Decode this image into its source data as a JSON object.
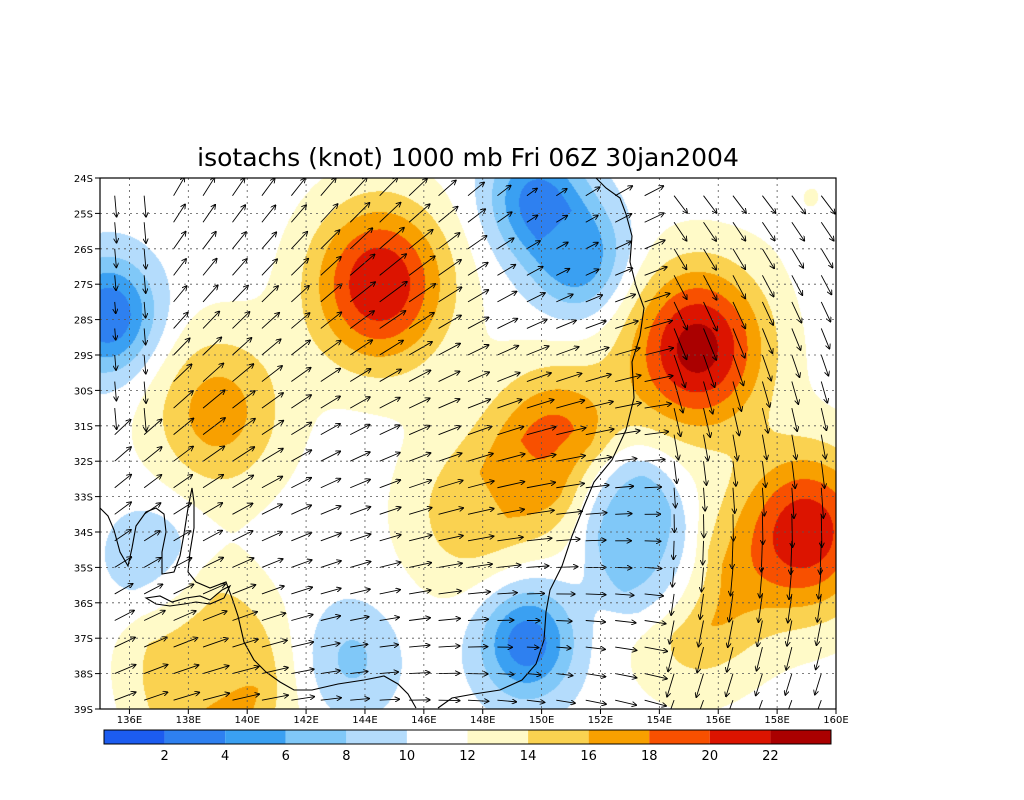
{
  "chart_data": {
    "type": "heatmap",
    "title": "isotachs (knot) 1000 mb Fri 06Z 30jan2004",
    "variable": "isotachs",
    "units": "knot",
    "level": "1000 mb",
    "valid_time": "Fri 06Z 30jan2004",
    "x_axis": {
      "range": [
        135,
        160
      ],
      "ticks": [
        136,
        138,
        140,
        142,
        144,
        146,
        148,
        150,
        152,
        154,
        156,
        158,
        160
      ],
      "tick_labels": [
        "136E",
        "138E",
        "140E",
        "142E",
        "144E",
        "146E",
        "148E",
        "150E",
        "152E",
        "154E",
        "156E",
        "158E",
        "160E"
      ]
    },
    "y_axis": {
      "range": [
        -39,
        -24
      ],
      "ticks": [
        -24,
        -25,
        -26,
        -27,
        -28,
        -29,
        -30,
        -31,
        -32,
        -33,
        -34,
        -35,
        -36,
        -37,
        -38,
        -39
      ],
      "tick_labels": [
        "24S",
        "25S",
        "26S",
        "27S",
        "28S",
        "29S",
        "30S",
        "31S",
        "32S",
        "33S",
        "34S",
        "35S",
        "36S",
        "37S",
        "38S",
        "39S"
      ]
    },
    "grid": true,
    "colorbar": {
      "labels": [
        "2",
        "4",
        "6",
        "8",
        "10",
        "12",
        "14",
        "16",
        "18",
        "20",
        "22"
      ],
      "levels": [
        2,
        4,
        6,
        8,
        10,
        12,
        14,
        16,
        18,
        20,
        22
      ],
      "colors": [
        "#1c5cf0",
        "#2e80f0",
        "#3aa0f2",
        "#80c8f8",
        "#b4dcfc",
        "#ffffff",
        "#fffac8",
        "#fad250",
        "#f8a000",
        "#f85000",
        "#dc1400",
        "#aa0000"
      ]
    },
    "speed_maxima": [
      {
        "lon": 144.5,
        "lat": -27.0,
        "speed": 22
      },
      {
        "lon": 155.3,
        "lat": -28.8,
        "speed": 23
      },
      {
        "lon": 159.0,
        "lat": -34.0,
        "speed": 21.5
      },
      {
        "lon": 150.5,
        "lat": -31.6,
        "speed": 19
      },
      {
        "lon": 139.0,
        "lat": -30.6,
        "speed": 17
      },
      {
        "lon": 139.0,
        "lat": -38.5,
        "speed": 17
      },
      {
        "lon": 155.2,
        "lat": -36.0,
        "speed": 17
      },
      {
        "lon": 147.5,
        "lat": -33.5,
        "speed": 15
      },
      {
        "lon": 138.2,
        "lat": -37.0,
        "speed": 14
      }
    ],
    "speed_minima": [
      {
        "lon": 135.3,
        "lat": -27.9,
        "speed": 2
      },
      {
        "lon": 149.5,
        "lat": -37.1,
        "speed": 2.5
      },
      {
        "lon": 149.8,
        "lat": -24.6,
        "speed": 3.5
      },
      {
        "lon": 153.8,
        "lat": -35.0,
        "speed": 3
      },
      {
        "lon": 152.8,
        "lat": -33.2,
        "speed": 4
      },
      {
        "lon": 151.3,
        "lat": -26.3,
        "speed": 4.5
      },
      {
        "lon": 143.5,
        "lat": -37.6,
        "speed": 7.5
      },
      {
        "lon": 136.8,
        "lat": -34.8,
        "speed": 7.5
      },
      {
        "lon": 159.2,
        "lat": -24.5,
        "speed": 12
      }
    ]
  }
}
